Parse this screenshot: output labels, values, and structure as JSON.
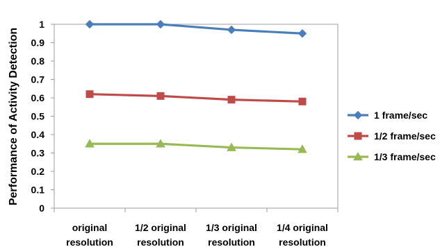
{
  "chart_data": {
    "type": "line",
    "title": "",
    "xlabel": "",
    "ylabel": "Performance of  Activity Detection",
    "categories": [
      [
        "original",
        "resolution"
      ],
      [
        "1/2 original",
        "resolution"
      ],
      [
        "1/3 original",
        "resolution"
      ],
      [
        "1/4 original",
        "resolution"
      ]
    ],
    "ylim": [
      0,
      1
    ],
    "yticks": [
      "0",
      "0.1",
      "0.2",
      "0.3",
      "0.4",
      "0.5",
      "0.6",
      "0.7",
      "0.8",
      "0.9",
      "1"
    ],
    "grid": false,
    "legend_position": "right",
    "series": [
      {
        "name": "1 frame/sec",
        "values": [
          1.0,
          1.0,
          0.97,
          0.95
        ],
        "color": "#4a7ebb",
        "marker": "diamond"
      },
      {
        "name": "1/2 frame/sec",
        "values": [
          0.62,
          0.61,
          0.59,
          0.58
        ],
        "color": "#be4b48",
        "marker": "square"
      },
      {
        "name": "1/3 frame/sec",
        "values": [
          0.35,
          0.35,
          0.33,
          0.32
        ],
        "color": "#98b954",
        "marker": "triangle"
      }
    ]
  }
}
